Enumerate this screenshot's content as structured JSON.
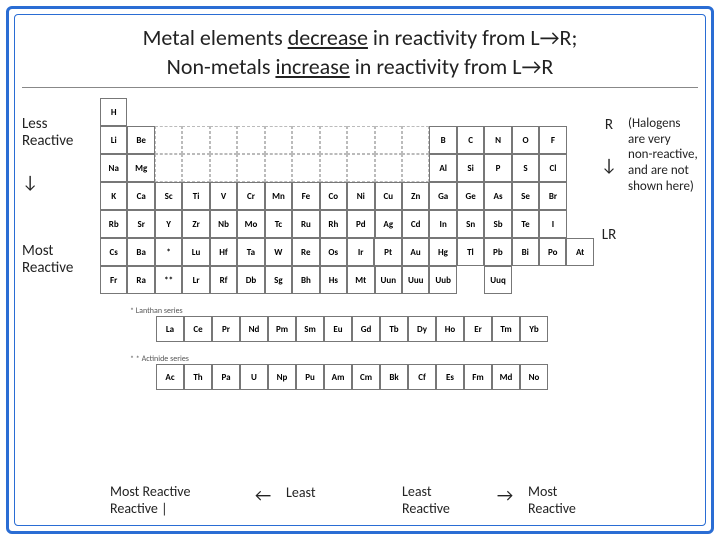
{
  "title": {
    "line1_pre": "Metal elements ",
    "line1_u": "decrease",
    "line1_post": " in reactivity from L→R;",
    "line2_pre": "Non-metals ",
    "line2_u": "increase",
    "line2_post": " in reactivity from L→R"
  },
  "left_labels": {
    "less": "Less Reactive",
    "arrow": "↓",
    "most": "Most Reactive"
  },
  "right_labels": {
    "r": "R",
    "arrow": "↓",
    "lr": "LR"
  },
  "note": "(Halogens are very non-reactive, and are not shown here)",
  "bottom": {
    "g1": "Most Reactive Reactive |",
    "arr_left": "←",
    "g2": "Least",
    "g3": "Least Reactive",
    "arr_right": "→",
    "g4": "Most Reactive"
  },
  "lanth_label1": "* Lanthan series",
  "lanth_label2": "* * Actinide series",
  "ptable": {
    "rows": [
      [
        {
          "s": "H"
        },
        null,
        null,
        null,
        null,
        null,
        null,
        null,
        null,
        null,
        null,
        null,
        null,
        null,
        null,
        null,
        null,
        null
      ],
      [
        {
          "s": "Li",
          "w": ""
        },
        {
          "s": "Be"
        },
        null,
        null,
        null,
        null,
        null,
        null,
        null,
        null,
        null,
        null,
        {
          "s": "B"
        },
        {
          "s": "C"
        },
        {
          "s": "N"
        },
        {
          "s": "O"
        },
        {
          "s": "F"
        },
        null
      ],
      [
        {
          "s": "Na"
        },
        {
          "s": "Mg"
        },
        null,
        null,
        null,
        null,
        null,
        null,
        null,
        null,
        null,
        null,
        {
          "s": "Al"
        },
        {
          "s": "Si"
        },
        {
          "s": "P"
        },
        {
          "s": "S"
        },
        {
          "s": "Cl"
        },
        null
      ],
      [
        {
          "s": "K"
        },
        {
          "s": "Ca"
        },
        {
          "s": "Sc"
        },
        {
          "s": "Ti"
        },
        {
          "s": "V"
        },
        {
          "s": "Cr"
        },
        {
          "s": "Mn"
        },
        {
          "s": "Fe"
        },
        {
          "s": "Co"
        },
        {
          "s": "Ni"
        },
        {
          "s": "Cu"
        },
        {
          "s": "Zn"
        },
        {
          "s": "Ga"
        },
        {
          "s": "Ge"
        },
        {
          "s": "As"
        },
        {
          "s": "Se"
        },
        {
          "s": "Br"
        },
        null
      ],
      [
        {
          "s": "Rb"
        },
        {
          "s": "Sr"
        },
        {
          "s": "Y"
        },
        {
          "s": "Zr"
        },
        {
          "s": "Nb"
        },
        {
          "s": "Mo"
        },
        {
          "s": "Tc"
        },
        {
          "s": "Ru"
        },
        {
          "s": "Rh"
        },
        {
          "s": "Pd"
        },
        {
          "s": "Ag"
        },
        {
          "s": "Cd"
        },
        {
          "s": "In"
        },
        {
          "s": "Sn"
        },
        {
          "s": "Sb"
        },
        {
          "s": "Te"
        },
        {
          "s": "I"
        },
        null
      ],
      [
        {
          "s": "Cs"
        },
        {
          "s": "Ba"
        },
        {
          "s": "*"
        },
        {
          "s": "Lu"
        },
        {
          "s": "Hf"
        },
        {
          "s": "Ta"
        },
        {
          "s": "W"
        },
        {
          "s": "Re"
        },
        {
          "s": "Os"
        },
        {
          "s": "Ir"
        },
        {
          "s": "Pt"
        },
        {
          "s": "Au"
        },
        {
          "s": "Hg"
        },
        {
          "s": "Tl"
        },
        {
          "s": "Pb"
        },
        {
          "s": "Bi"
        },
        {
          "s": "Po"
        },
        {
          "s": "At"
        }
      ],
      [
        {
          "s": "Fr"
        },
        {
          "s": "Ra"
        },
        {
          "s": "**"
        },
        {
          "s": "Lr"
        },
        {
          "s": "Rf"
        },
        {
          "s": "Db"
        },
        {
          "s": "Sg"
        },
        {
          "s": "Bh"
        },
        {
          "s": "Hs"
        },
        {
          "s": "Mt"
        },
        {
          "s": "Uun"
        },
        {
          "s": "Uuu"
        },
        {
          "s": "Uub"
        },
        null,
        {
          "s": "Uuq"
        },
        null,
        null,
        null
      ]
    ],
    "lanth": [
      [
        {
          "s": "La"
        },
        {
          "s": "Ce"
        },
        {
          "s": "Pr"
        },
        {
          "s": "Nd"
        },
        {
          "s": "Pm"
        },
        {
          "s": "Sm"
        },
        {
          "s": "Eu"
        },
        {
          "s": "Gd"
        },
        {
          "s": "Tb"
        },
        {
          "s": "Dy"
        },
        {
          "s": "Ho"
        },
        {
          "s": "Er"
        },
        {
          "s": "Tm"
        },
        {
          "s": "Yb"
        }
      ],
      [
        {
          "s": "Ac"
        },
        {
          "s": "Th"
        },
        {
          "s": "Pa"
        },
        {
          "s": "U"
        },
        {
          "s": "Np"
        },
        {
          "s": "Pu"
        },
        {
          "s": "Am"
        },
        {
          "s": "Cm"
        },
        {
          "s": "Bk"
        },
        {
          "s": "Cf"
        },
        {
          "s": "Es"
        },
        {
          "s": "Fm"
        },
        {
          "s": "Md"
        },
        {
          "s": "No"
        }
      ]
    ]
  },
  "colors": {
    "border": "#2a6dd4",
    "text": "#222222",
    "cell_border": "#777777"
  }
}
